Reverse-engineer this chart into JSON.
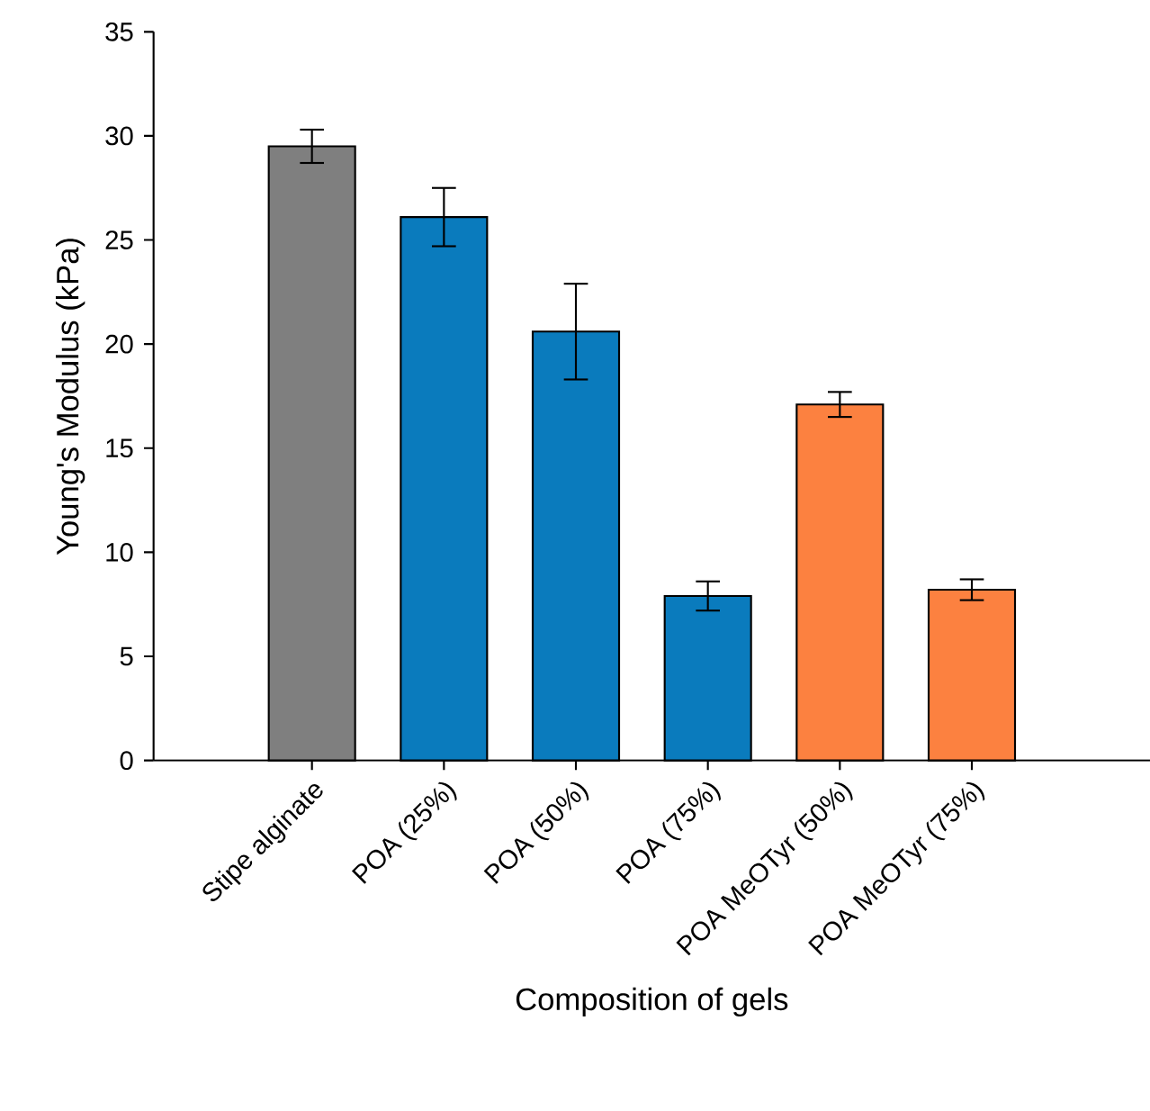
{
  "chart_data": {
    "type": "bar",
    "xlabel": "Composition of gels",
    "ylabel": "Young's Modulus (kPa)",
    "categories": [
      "Stipe alginate",
      "POA (25%)",
      "POA (50%)",
      "POA (75%)",
      "POA MeOTyr (50%)",
      "POA MeOTyr (75%)"
    ],
    "values": [
      29.5,
      26.1,
      20.6,
      7.9,
      17.1,
      8.2
    ],
    "errors": [
      0.8,
      1.4,
      2.3,
      0.7,
      0.6,
      0.5
    ],
    "colors": [
      "#7f7f7f",
      "#0a7bbd",
      "#0a7bbd",
      "#0a7bbd",
      "#fc8140",
      "#fc8140"
    ],
    "ylim": [
      0,
      35
    ],
    "yticks": [
      0,
      5,
      10,
      15,
      20,
      25,
      30,
      35
    ]
  }
}
